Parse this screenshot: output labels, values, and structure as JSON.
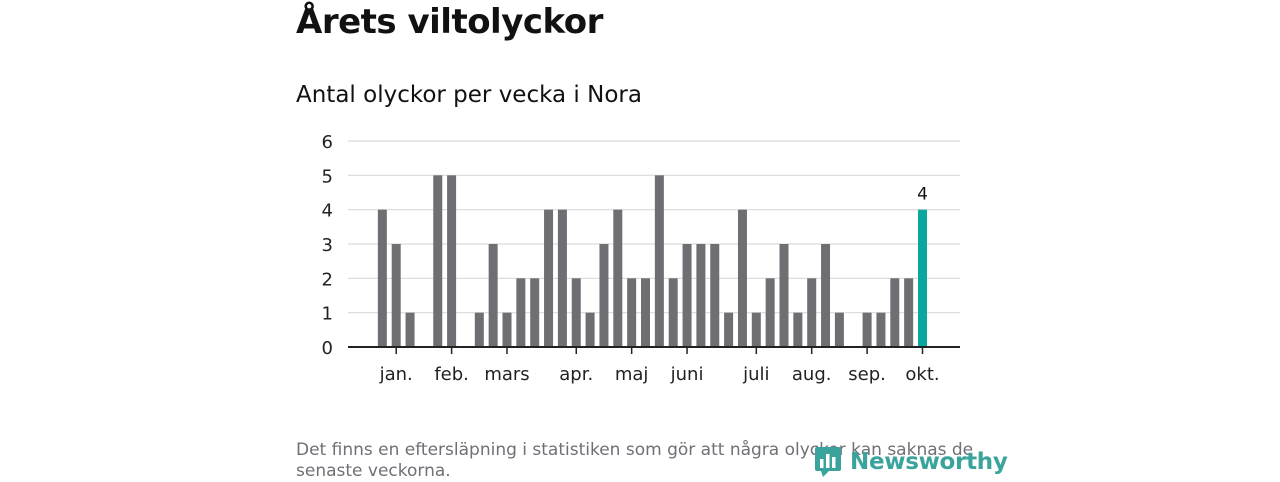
{
  "header": {
    "title": "Årets viltolyckor",
    "subtitle": "Antal olyckor per vecka i Nora"
  },
  "footer": {
    "note": "Det finns en eftersläpning i statistiken som gör att några olyckor kan saknas de senaste veckorna.",
    "logo_text": "Newsworthy"
  },
  "colors": {
    "bar": "#6e6e73",
    "highlight": "#0aa79c",
    "grid": "#d9d9d9",
    "axis": "#222222",
    "logo": "#3aa39c"
  },
  "chart_data": {
    "type": "bar",
    "title": "Antal olyckor per vecka i Nora",
    "xlabel": "",
    "ylabel": "",
    "ylim": [
      0,
      6
    ],
    "yticks": [
      0,
      1,
      2,
      3,
      4,
      5,
      6
    ],
    "grid": true,
    "x_axis": "weeks of the year (week 1 to week 41)",
    "weeks": [
      1,
      2,
      3,
      4,
      5,
      6,
      7,
      8,
      9,
      10,
      11,
      12,
      13,
      14,
      15,
      16,
      17,
      18,
      19,
      20,
      21,
      22,
      23,
      24,
      25,
      26,
      27,
      28,
      29,
      30,
      31,
      32,
      33,
      34,
      35,
      36,
      37,
      38,
      39,
      40,
      41
    ],
    "values": [
      0,
      4,
      3,
      1,
      0,
      5,
      5,
      0,
      1,
      3,
      1,
      2,
      2,
      4,
      4,
      2,
      1,
      3,
      4,
      2,
      2,
      5,
      2,
      3,
      3,
      3,
      1,
      4,
      1,
      2,
      3,
      1,
      2,
      3,
      1,
      0,
      1,
      1,
      2,
      2,
      4
    ],
    "month_ticks": [
      {
        "label": "jan.",
        "week": 3
      },
      {
        "label": "feb.",
        "week": 7
      },
      {
        "label": "mars",
        "week": 11
      },
      {
        "label": "apr.",
        "week": 16
      },
      {
        "label": "maj",
        "week": 20
      },
      {
        "label": "juni",
        "week": 24
      },
      {
        "label": "juli",
        "week": 29
      },
      {
        "label": "aug.",
        "week": 33
      },
      {
        "label": "sep.",
        "week": 37
      },
      {
        "label": "okt.",
        "week": 41
      }
    ],
    "highlighted_week": 41,
    "annotation": {
      "week": 41,
      "text": "4"
    }
  }
}
